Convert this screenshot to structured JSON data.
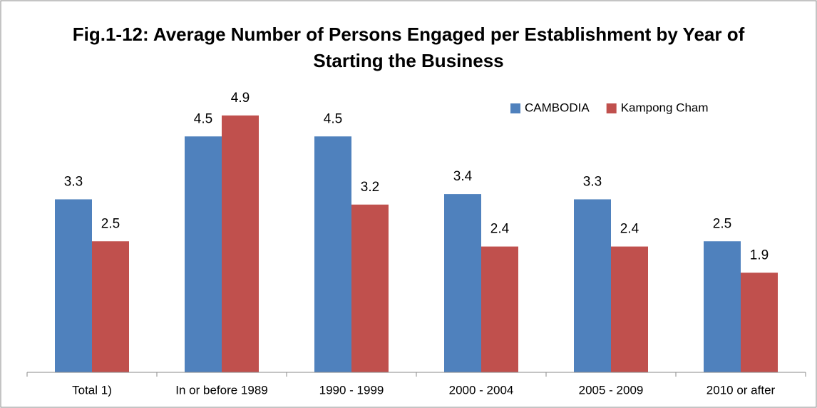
{
  "chart_data": {
    "type": "bar",
    "title": "Fig.1-12: Average Number of Persons Engaged per Establishment by Year of Starting the Business",
    "categories": [
      "Total 1)",
      "In or before 1989",
      "1990 - 1999",
      "2000 - 2004",
      "2005 - 2009",
      "2010 or after"
    ],
    "series": [
      {
        "name": "CAMBODIA",
        "color": "#4f81bd",
        "values": [
          3.3,
          4.5,
          4.5,
          3.4,
          3.3,
          2.5
        ]
      },
      {
        "name": "Kampong Cham",
        "color": "#c0504d",
        "values": [
          2.5,
          4.9,
          3.2,
          2.4,
          2.4,
          1.9
        ]
      }
    ],
    "ylim": [
      0,
      6
    ],
    "legend": "top-right"
  }
}
